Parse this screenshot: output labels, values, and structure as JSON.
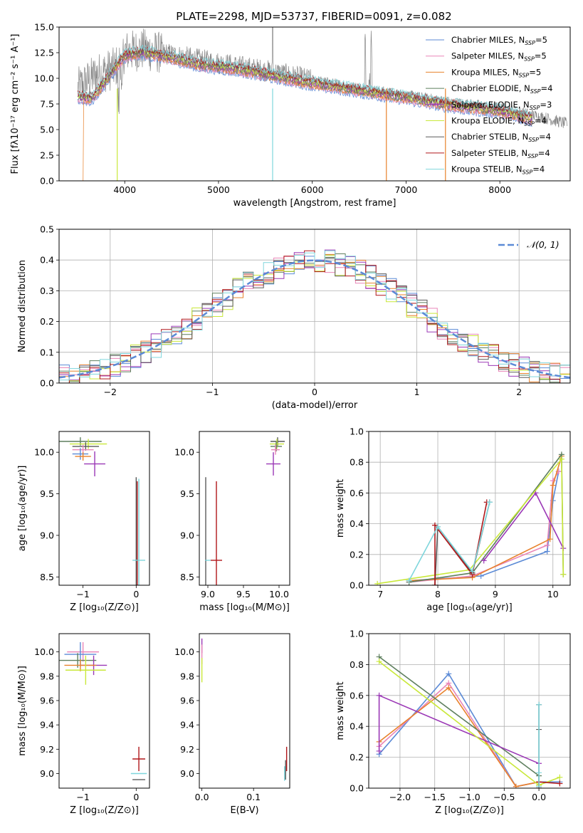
{
  "figure_title": "PLATE=2298, MJD=53737, FIBERID=0091, z=0.082",
  "colors": {
    "chabrier_miles": "#5b8ad6",
    "salpeter_miles": "#e986b8",
    "kroupa_miles": "#e8822c",
    "chabrier_elodie": "#5e7f5e",
    "salpeter_elodie": "#9b38b6",
    "kroupa_elodie": "#c9e83a",
    "chabrier_stelib": "#5a5a5a",
    "salpeter_stelib": "#b0171a",
    "kroupa_stelib": "#7fd6dc",
    "data": "#888888",
    "normal": "#5b8ad6"
  },
  "chart_data": [
    {
      "id": "spectrum",
      "type": "line",
      "xlabel": "wavelength [Angstrom, rest frame]",
      "ylabel": "Flux [fλ10⁻¹⁷ erg cm⁻² s⁻¹ A⁻¹]",
      "xlim": [
        3300,
        8750
      ],
      "ylim": [
        0,
        15
      ],
      "xticks": [
        4000,
        5000,
        6000,
        7000,
        8000
      ],
      "yticks": [
        "0.0",
        "2.5",
        "5.0",
        "7.5",
        "10.0",
        "12.5",
        "15.0"
      ],
      "grid": false,
      "legend_position": "top-right",
      "data_continuum": [
        [
          3500,
          9.0
        ],
        [
          3700,
          10.4
        ],
        [
          3900,
          11.0
        ],
        [
          4000,
          12.6
        ],
        [
          4200,
          12.8
        ],
        [
          4500,
          12.3
        ],
        [
          4800,
          11.8
        ],
        [
          5200,
          11.2
        ],
        [
          5600,
          10.6
        ],
        [
          6000,
          9.8
        ],
        [
          6500,
          9.0
        ],
        [
          7000,
          8.3
        ],
        [
          7500,
          7.6
        ],
        [
          8000,
          7.1
        ],
        [
          8500,
          6.1
        ],
        [
          8700,
          5.6
        ]
      ],
      "model_continuum": [
        [
          3500,
          8.2
        ],
        [
          3650,
          8.0
        ],
        [
          3800,
          9.8
        ],
        [
          4000,
          12.2
        ],
        [
          4200,
          12.5
        ],
        [
          4500,
          12.0
        ],
        [
          4800,
          11.3
        ],
        [
          5200,
          10.9
        ],
        [
          5600,
          10.2
        ],
        [
          6000,
          9.5
        ],
        [
          6500,
          8.8
        ],
        [
          7000,
          8.1
        ],
        [
          7500,
          7.3
        ],
        [
          8000,
          6.8
        ],
        [
          8350,
          6.0
        ]
      ],
      "series": [
        {
          "name": "Chabrier MILES, N_SSP=5",
          "label_main": "Chabrier MILES, N",
          "label_sub": "SSP",
          "label_end": "=5",
          "color_key": "chabrier_miles"
        },
        {
          "name": "Salpeter MILES, N_SSP=5",
          "label_main": "Salpeter MILES, N",
          "label_sub": "SSP",
          "label_end": "=5",
          "color_key": "salpeter_miles"
        },
        {
          "name": "Kroupa MILES, N_SSP=5",
          "label_main": "Kroupa MILES, N",
          "label_sub": "SSP",
          "label_end": "=5",
          "color_key": "kroupa_miles"
        },
        {
          "name": "Chabrier ELODIE, N_SSP=4",
          "label_main": "Chabrier ELODIE, N",
          "label_sub": "SSP",
          "label_end": "=4",
          "color_key": "chabrier_elodie"
        },
        {
          "name": "Salpeter ELODIE, N_SSP=3",
          "label_main": "Salpeter ELODIE, N",
          "label_sub": "SSP",
          "label_end": "=3",
          "color_key": "salpeter_elodie"
        },
        {
          "name": "Kroupa ELODIE, N_SSP=4",
          "label_main": "Kroupa ELODIE, N",
          "label_sub": "SSP",
          "label_end": "=4",
          "color_key": "kroupa_elodie"
        },
        {
          "name": "Chabrier STELIB, N_SSP=4",
          "label_main": "Chabrier STELIB, N",
          "label_sub": "SSP",
          "label_end": "=4",
          "color_key": "chabrier_stelib"
        },
        {
          "name": "Salpeter STELIB, N_SSP=4",
          "label_main": "Salpeter STELIB, N",
          "label_sub": "SSP",
          "label_end": "=4",
          "color_key": "salpeter_stelib"
        },
        {
          "name": "Kroupa STELIB, N_SSP=4",
          "label_main": "Kroupa STELIB, N",
          "label_sub": "SSP",
          "label_end": "=4",
          "color_key": "kroupa_stelib"
        }
      ]
    },
    {
      "id": "residuals",
      "type": "line",
      "xlabel": "(data-model)/error",
      "ylabel": "Normed distribution",
      "xlim": [
        -2.5,
        2.5
      ],
      "ylim": [
        0,
        0.5
      ],
      "xticks": [
        -2,
        -1,
        0,
        1,
        2
      ],
      "yticks": [
        "0.0",
        "0.1",
        "0.2",
        "0.3",
        "0.4",
        "0.5"
      ],
      "grid": true,
      "legend_position": "top-right",
      "legend_label": "𝒩(0, 1)",
      "normal_curve": {
        "mean": 0,
        "sigma": 1
      }
    },
    {
      "id": "age_vs_z",
      "type": "scatter",
      "xlabel": "Z [log₁₀(Z/Z⊙)]",
      "ylabel": "age  [log₁₀(age/yr)]",
      "xlim": [
        -1.45,
        0.25
      ],
      "ylim": [
        8.4,
        10.25
      ],
      "xticks": [
        "-1",
        "0"
      ],
      "yticks": [
        "8.5",
        "9.0",
        "9.5",
        "10.0"
      ],
      "points": [
        {
          "x": -1.05,
          "y": 10.13,
          "xerr": 0.4,
          "yerr": 0.05,
          "color_key": "chabrier_elodie"
        },
        {
          "x": -0.9,
          "y": 10.1,
          "xerr": 0.35,
          "yerr": 0.06,
          "color_key": "kroupa_elodie"
        },
        {
          "x": -0.95,
          "y": 10.07,
          "xerr": 0.25,
          "yerr": 0.05,
          "color_key": "chabrier_stelib"
        },
        {
          "x": -1.0,
          "y": 10.03,
          "xerr": 0.2,
          "yerr": 0.06,
          "color_key": "salpeter_miles"
        },
        {
          "x": -1.05,
          "y": 9.98,
          "xerr": 0.15,
          "yerr": 0.07,
          "color_key": "chabrier_miles"
        },
        {
          "x": -1.0,
          "y": 9.95,
          "xerr": 0.15,
          "yerr": 0.05,
          "color_key": "kroupa_miles"
        },
        {
          "x": -0.78,
          "y": 9.86,
          "xerr": 0.2,
          "yerr": 0.15,
          "color_key": "salpeter_elodie"
        },
        {
          "x": 0.0,
          "y": 8.7,
          "xerr": 0.02,
          "yerr": 1.0,
          "color_key": "chabrier_stelib"
        },
        {
          "x": 0.02,
          "y": 8.7,
          "xerr": 0.02,
          "yerr": 0.95,
          "color_key": "salpeter_stelib"
        },
        {
          "x": 0.05,
          "y": 8.7,
          "xerr": 0.12,
          "yerr": 0.98,
          "color_key": "kroupa_stelib"
        }
      ]
    },
    {
      "id": "age_vs_mass",
      "type": "scatter",
      "xlabel": "mass [log₁₀(M/M⊙)]",
      "ylabel": "",
      "xlim": [
        8.88,
        10.15
      ],
      "ylim": [
        8.4,
        10.25
      ],
      "xticks": [
        "9.0",
        "9.5",
        "10.0"
      ],
      "yticks": [
        "8.5",
        "9.0",
        "9.5",
        "10.0"
      ],
      "points": [
        {
          "x": 9.98,
          "y": 10.13,
          "xerr": 0.1,
          "yerr": 0.05,
          "color_key": "chabrier_stelib"
        },
        {
          "x": 9.97,
          "y": 10.1,
          "xerr": 0.1,
          "yerr": 0.06,
          "color_key": "kroupa_elodie"
        },
        {
          "x": 9.96,
          "y": 10.07,
          "xerr": 0.08,
          "yerr": 0.06,
          "color_key": "chabrier_elodie"
        },
        {
          "x": 9.95,
          "y": 10.03,
          "xerr": 0.06,
          "yerr": 0.06,
          "color_key": "salpeter_miles"
        },
        {
          "x": 9.92,
          "y": 9.86,
          "xerr": 0.1,
          "yerr": 0.14,
          "color_key": "salpeter_elodie"
        },
        {
          "x": 8.97,
          "y": 8.7,
          "xerr": 0.01,
          "yerr": 1.0,
          "color_key": "chabrier_stelib"
        },
        {
          "x": 9.12,
          "y": 8.7,
          "xerr": 0.08,
          "yerr": 0.95,
          "color_key": "salpeter_stelib"
        },
        {
          "x": 9.0,
          "y": 8.7,
          "xerr": 0.04,
          "yerr": 0.0,
          "color_key": "kroupa_stelib"
        }
      ]
    },
    {
      "id": "weight_vs_age",
      "type": "line",
      "xlabel": "age  [log₁₀(age/yr)]",
      "ylabel": "mass weight",
      "xlim": [
        6.8,
        10.3
      ],
      "ylim": [
        0,
        1.0
      ],
      "xticks": [
        "7",
        "8",
        "9",
        "10"
      ],
      "yticks": [
        "0.0",
        "0.2",
        "0.4",
        "0.6",
        "0.8",
        "1.0"
      ],
      "grid": true,
      "series": [
        {
          "color_key": "chabrier_miles",
          "x": [
            7.5,
            8.75,
            9.9,
            10.0,
            10.1
          ],
          "y": [
            0.03,
            0.06,
            0.22,
            0.55,
            0.74
          ]
        },
        {
          "color_key": "salpeter_miles",
          "x": [
            7.5,
            8.6,
            9.9,
            10.0,
            10.1
          ],
          "y": [
            0.02,
            0.06,
            0.26,
            0.68,
            0.74
          ]
        },
        {
          "color_key": "kroupa_miles",
          "x": [
            7.5,
            8.6,
            9.95,
            10.0,
            10.15
          ],
          "y": [
            0.03,
            0.05,
            0.3,
            0.65,
            0.84
          ]
        },
        {
          "color_key": "chabrier_elodie",
          "x": [
            7.5,
            8.6,
            10.15,
            10.18
          ],
          "y": [
            0.02,
            0.08,
            0.85,
            0.07
          ]
        },
        {
          "color_key": "salpeter_elodie",
          "x": [
            8.8,
            9.7,
            10.18
          ],
          "y": [
            0.16,
            0.6,
            0.24
          ]
        },
        {
          "color_key": "kroupa_elodie",
          "x": [
            6.95,
            8.55,
            10.15,
            10.18
          ],
          "y": [
            0.01,
            0.1,
            0.82,
            0.07
          ]
        },
        {
          "color_key": "chabrier_stelib",
          "x": [
            7.95,
            8.0,
            8.6,
            8.9
          ],
          "y": [
            0.0,
            0.38,
            0.08,
            0.54
          ]
        },
        {
          "color_key": "salpeter_stelib",
          "x": [
            7.95,
            7.95,
            8.6,
            8.85
          ],
          "y": [
            0.0,
            0.39,
            0.07,
            0.54
          ]
        },
        {
          "color_key": "kroupa_stelib",
          "x": [
            7.5,
            8.0,
            8.6,
            8.9
          ],
          "y": [
            0.03,
            0.38,
            0.09,
            0.54
          ]
        }
      ]
    },
    {
      "id": "mass_vs_z",
      "type": "scatter",
      "xlabel": "Z [log₁₀(Z/Z⊙)]",
      "ylabel": "mass [log₁₀(M/M⊙)]",
      "xlim": [
        -1.45,
        0.25
      ],
      "ylim": [
        8.88,
        10.15
      ],
      "xticks": [
        "-1",
        "0"
      ],
      "yticks": [
        "9.0",
        "9.2",
        "9.4",
        "9.6",
        "9.8",
        "10.0"
      ],
      "points": [
        {
          "x": -1.0,
          "y": 10.0,
          "xerr": 0.3,
          "yerr": 0.08,
          "color_key": "salpeter_miles"
        },
        {
          "x": -1.05,
          "y": 9.98,
          "xerr": 0.3,
          "yerr": 0.1,
          "color_key": "chabrier_miles"
        },
        {
          "x": -1.1,
          "y": 9.93,
          "xerr": 0.35,
          "yerr": 0.06,
          "color_key": "chabrier_elodie"
        },
        {
          "x": -0.8,
          "y": 9.89,
          "xerr": 0.25,
          "yerr": 0.08,
          "color_key": "salpeter_elodie"
        },
        {
          "x": -1.05,
          "y": 9.89,
          "xerr": 0.3,
          "yerr": 0.05,
          "color_key": "kroupa_miles"
        },
        {
          "x": -0.95,
          "y": 9.85,
          "xerr": 0.38,
          "yerr": 0.12,
          "color_key": "kroupa_elodie"
        },
        {
          "x": 0.05,
          "y": 9.12,
          "xerr": 0.12,
          "yerr": 0.1,
          "color_key": "salpeter_stelib"
        },
        {
          "x": 0.05,
          "y": 9.0,
          "xerr": 0.15,
          "yerr": 0.0,
          "color_key": "kroupa_stelib"
        },
        {
          "x": 0.05,
          "y": 8.95,
          "xerr": 0.12,
          "yerr": 0.0,
          "color_key": "chabrier_stelib"
        }
      ]
    },
    {
      "id": "mass_vs_ebv",
      "type": "scatter",
      "xlabel": "E(B-V)",
      "ylabel": "",
      "xlim": [
        -0.005,
        0.17
      ],
      "ylim": [
        8.88,
        10.15
      ],
      "xticks": [
        "0.0",
        "0.1"
      ],
      "yticks": [
        "9.0",
        "9.2",
        "9.4",
        "9.6",
        "9.8",
        "10.0"
      ],
      "points": [
        {
          "x": 0.0,
          "y": 10.05,
          "xerr": 0.0,
          "yerr": 0.06,
          "color_key": "salpeter_elodie"
        },
        {
          "x": 0.0,
          "y": 9.98,
          "xerr": 0.0,
          "yerr": 0.08,
          "color_key": "salpeter_miles"
        },
        {
          "x": 0.0,
          "y": 9.85,
          "xerr": 0.0,
          "yerr": 0.1,
          "color_key": "kroupa_elodie"
        },
        {
          "x": 0.164,
          "y": 9.12,
          "xerr": 0.0,
          "yerr": 0.1,
          "color_key": "salpeter_stelib"
        },
        {
          "x": 0.162,
          "y": 9.03,
          "xerr": 0.0,
          "yerr": 0.08,
          "color_key": "chabrier_stelib"
        },
        {
          "x": 0.16,
          "y": 9.0,
          "xerr": 0.0,
          "yerr": 0.06,
          "color_key": "kroupa_stelib"
        }
      ]
    },
    {
      "id": "weight_vs_z",
      "type": "line",
      "xlabel": "Z [log₁₀(Z/Z⊙)]",
      "ylabel": "mass weight",
      "xlim": [
        -2.45,
        0.45
      ],
      "ylim": [
        0,
        1.0
      ],
      "xticks": [
        "-2.0",
        "-1.5",
        "-1.0",
        "-0.5",
        "0.0"
      ],
      "yticks": [
        "0.0",
        "0.2",
        "0.4",
        "0.6",
        "0.8",
        "1.0"
      ],
      "grid": true,
      "series": [
        {
          "color_key": "chabrier_miles",
          "x": [
            -2.3,
            -1.3,
            -0.33,
            0.0,
            0.3
          ],
          "y": [
            0.22,
            0.74,
            0.01,
            0.04,
            0.04
          ]
        },
        {
          "color_key": "salpeter_miles",
          "x": [
            -2.3,
            -1.3,
            -0.33,
            0.0
          ],
          "y": [
            0.27,
            0.68,
            0.01,
            0.04
          ]
        },
        {
          "color_key": "kroupa_miles",
          "x": [
            -2.3,
            -1.3,
            -0.33,
            0.0
          ],
          "y": [
            0.3,
            0.65,
            0.01,
            0.04
          ]
        },
        {
          "color_key": "chabrier_elodie",
          "x": [
            -2.3,
            0.0,
            0.0
          ],
          "y": [
            0.85,
            0.08,
            0.02
          ]
        },
        {
          "color_key": "salpeter_elodie",
          "x": [
            -2.3,
            -2.3,
            0.0
          ],
          "y": [
            0.24,
            0.6,
            0.16
          ]
        },
        {
          "color_key": "kroupa_elodie",
          "x": [
            -2.3,
            0.0,
            0.3
          ],
          "y": [
            0.82,
            0.02,
            0.07
          ]
        },
        {
          "color_key": "chabrier_stelib",
          "x": [
            0.0,
            0.0,
            0.0
          ],
          "y": [
            0.0,
            0.38,
            0.54
          ]
        },
        {
          "color_key": "salpeter_stelib",
          "x": [
            0.0,
            0.0,
            0.3
          ],
          "y": [
            0.0,
            0.04,
            0.03
          ]
        },
        {
          "color_key": "kroupa_stelib",
          "x": [
            0.0,
            0.0,
            0.0
          ],
          "y": [
            0.01,
            0.1,
            0.54
          ]
        }
      ]
    }
  ]
}
